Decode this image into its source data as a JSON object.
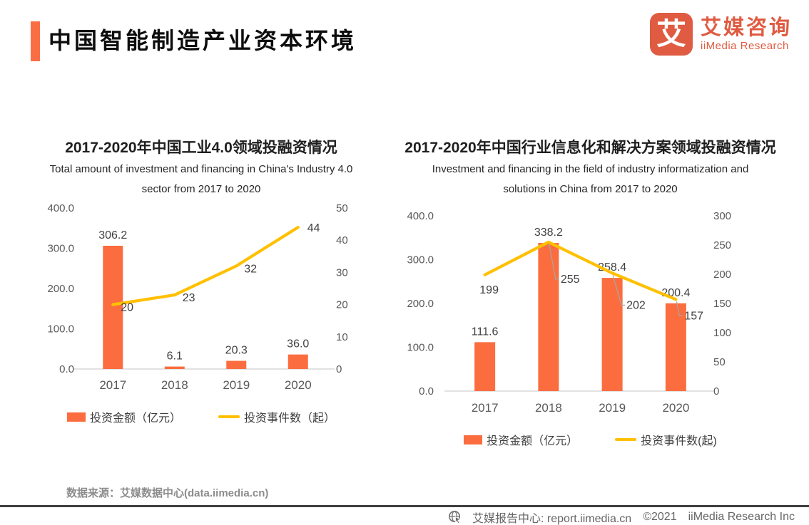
{
  "header": {
    "title": "中国智能制造产业资本环境",
    "logo": {
      "glyph": "艾",
      "name_cn": "艾媒咨询",
      "name_en": "iiMedia Research"
    }
  },
  "colors": {
    "bar": "#FB6D3F",
    "line": "#FFC000",
    "accent": "#F96E45",
    "logo": "#DF5B41",
    "axis_text": "#595959",
    "value_label": "#404040",
    "leader": "#A6A6A6",
    "source_text": "#8C8C8C",
    "footer_text": "#666666"
  },
  "chart_data": [
    {
      "type": "bar+line",
      "title": "2017-2020年中国工业4.0领域投融资情况",
      "subtitle_lines": [
        "Total amount of investment and financing in China's Industry 4.0",
        "sector from 2017 to 2020"
      ],
      "categories": [
        "2017",
        "2018",
        "2019",
        "2020"
      ],
      "series": [
        {
          "name": "投资金额（亿元）",
          "kind": "bar",
          "axis": "left",
          "values": [
            306.2,
            6.1,
            20.3,
            36.0
          ],
          "labels": [
            "306.2",
            "6.1",
            "20.3",
            "36.0"
          ]
        },
        {
          "name": "投资事件数（起）",
          "kind": "line",
          "axis": "right",
          "values": [
            20,
            23,
            32,
            44
          ],
          "labels": [
            "20",
            "23",
            "32",
            "44"
          ]
        }
      ],
      "left_axis": {
        "min": 0,
        "max": 400,
        "ticks": [
          0,
          100,
          200,
          300,
          400
        ],
        "tick_labels": [
          "0.0",
          "100.0",
          "200.0",
          "300.0",
          "400.0"
        ]
      },
      "right_axis": {
        "min": 0,
        "max": 50,
        "ticks": [
          0,
          10,
          20,
          30,
          40,
          50
        ],
        "tick_labels": [
          "0",
          "10",
          "20",
          "30",
          "40",
          "50"
        ]
      },
      "grid": false,
      "legend_position": "bottom"
    },
    {
      "type": "bar+line",
      "title": "2017-2020年中国行业信息化和解决方案领域投融资情况",
      "subtitle_lines": [
        "Investment and financing in the field of industry informatization and",
        "solutions in China from 2017 to 2020"
      ],
      "categories": [
        "2017",
        "2018",
        "2019",
        "2020"
      ],
      "series": [
        {
          "name": "投资金额（亿元）",
          "kind": "bar",
          "axis": "left",
          "values": [
            111.6,
            338.2,
            258.4,
            200.4
          ],
          "labels": [
            "111.6",
            "338.2",
            "258.4",
            "200.4"
          ]
        },
        {
          "name": "投资事件数(起)",
          "kind": "line",
          "axis": "right",
          "values": [
            199,
            255,
            202,
            157
          ],
          "labels": [
            "199",
            "255",
            "202",
            "157"
          ]
        }
      ],
      "left_axis": {
        "min": 0,
        "max": 400,
        "ticks": [
          0,
          100,
          200,
          300,
          400
        ],
        "tick_labels": [
          "0.0",
          "100.0",
          "200.0",
          "300.0",
          "400.0"
        ]
      },
      "right_axis": {
        "min": 0,
        "max": 300,
        "ticks": [
          0,
          50,
          100,
          150,
          200,
          250,
          300
        ],
        "tick_labels": [
          "0",
          "50",
          "100",
          "150",
          "200",
          "250",
          "300"
        ]
      },
      "grid": false,
      "legend_position": "bottom"
    }
  ],
  "source_note": "数据来源：艾媒数据中心(data.iimedia.cn)",
  "footer": {
    "site_label": "艾媒报告中心: report.iimedia.cn",
    "copyright": "©2021",
    "company": "iiMedia Research Inc"
  }
}
